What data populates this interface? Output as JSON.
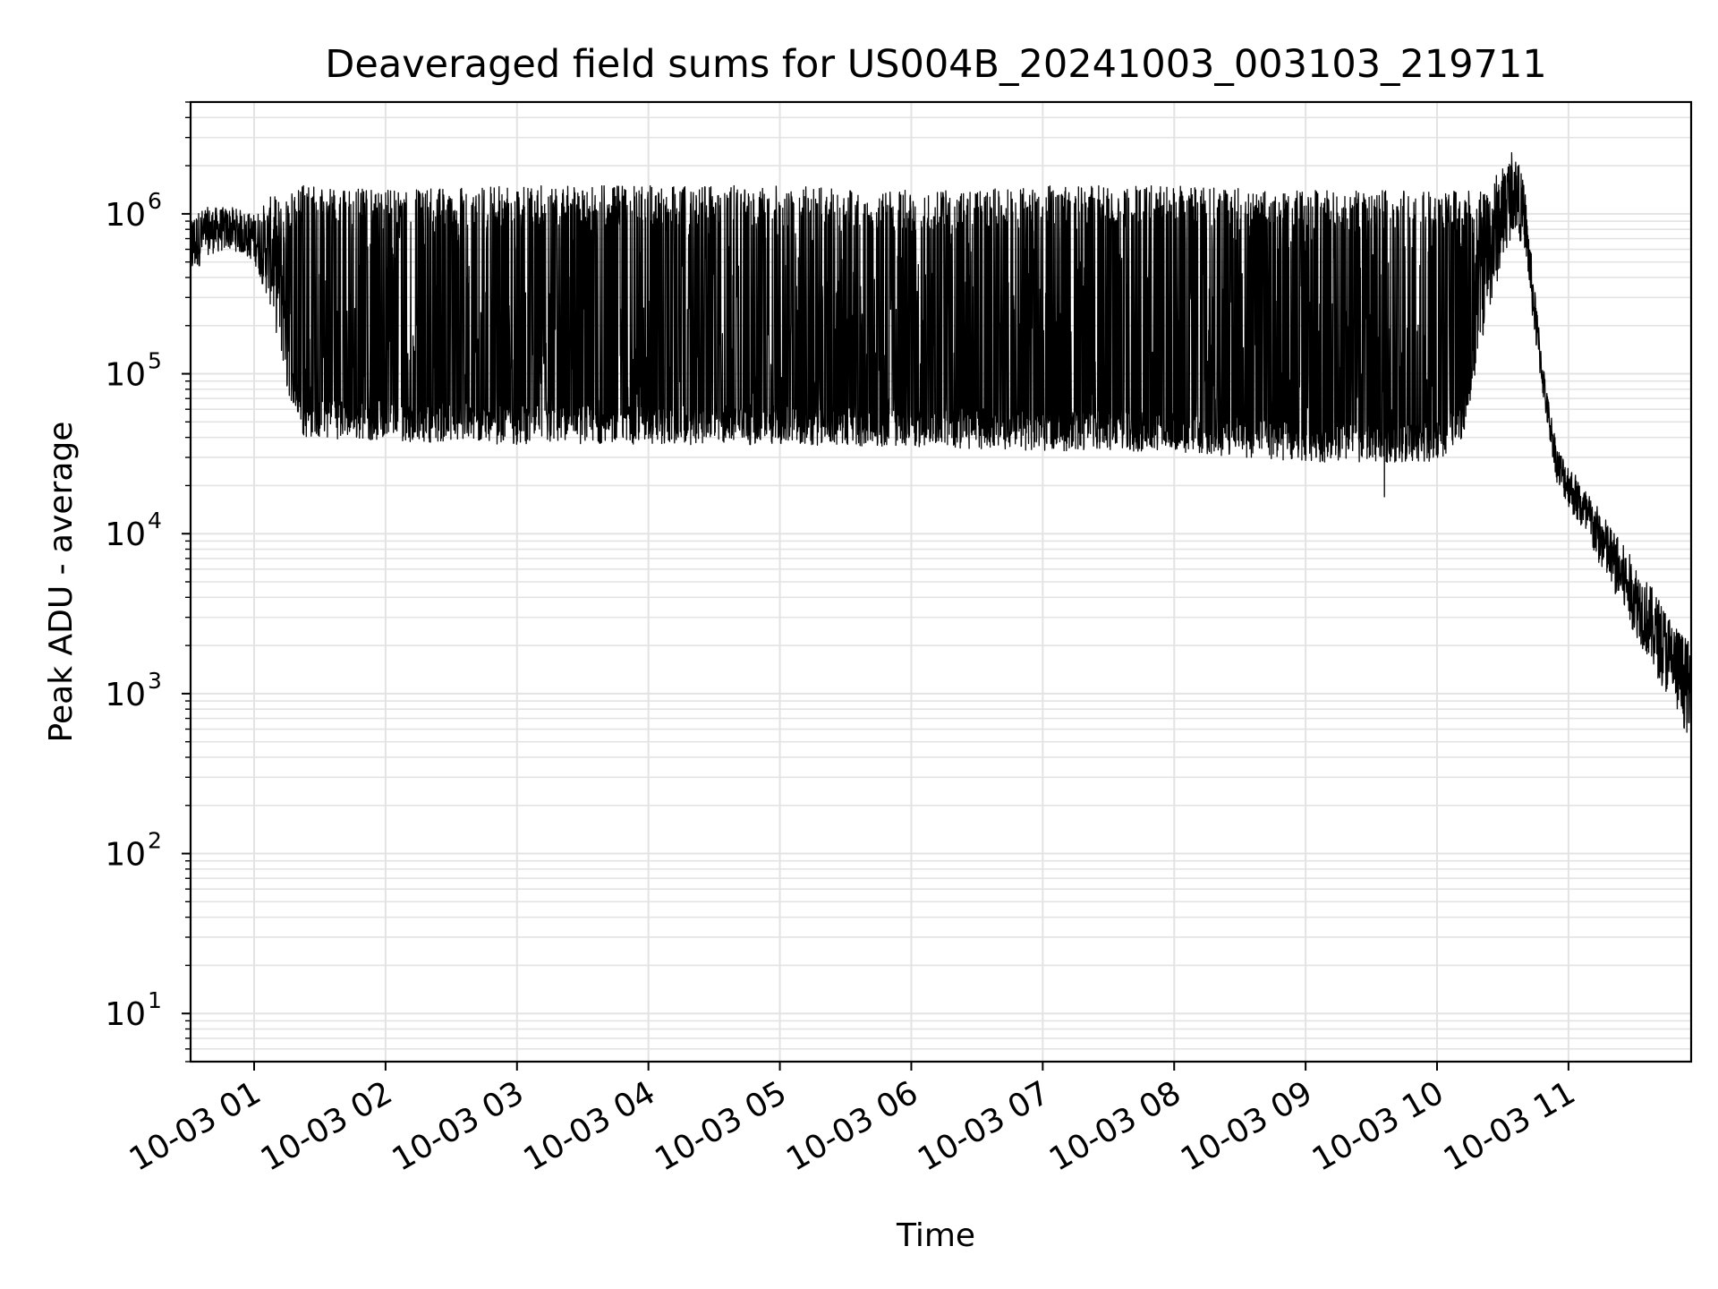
{
  "chart_data": {
    "type": "line",
    "title": "Deaveraged field sums for US004B_20241003_003103_219711",
    "xlabel": "Time",
    "ylabel": "Peak ADU - average",
    "yscale": "log",
    "ylim": [
      5,
      5000000
    ],
    "xlim": [
      "2024-10-03 00:31",
      "2024-10-03 11:56"
    ],
    "grid": true,
    "grid_color": "#e3e3e3",
    "line_color": "#000000",
    "x_ticks": [
      {
        "value": "2024-10-03 01:00",
        "label": "10-03 01"
      },
      {
        "value": "2024-10-03 02:00",
        "label": "10-03 02"
      },
      {
        "value": "2024-10-03 03:00",
        "label": "10-03 03"
      },
      {
        "value": "2024-10-03 04:00",
        "label": "10-03 04"
      },
      {
        "value": "2024-10-03 05:00",
        "label": "10-03 05"
      },
      {
        "value": "2024-10-03 06:00",
        "label": "10-03 06"
      },
      {
        "value": "2024-10-03 07:00",
        "label": "10-03 07"
      },
      {
        "value": "2024-10-03 08:00",
        "label": "10-03 08"
      },
      {
        "value": "2024-10-03 09:00",
        "label": "10-03 09"
      },
      {
        "value": "2024-10-03 10:00",
        "label": "10-03 10"
      },
      {
        "value": "2024-10-03 11:00",
        "label": "10-03 11"
      }
    ],
    "y_ticks": [
      {
        "value": 10,
        "base": "10",
        "exp": "1"
      },
      {
        "value": 100,
        "base": "10",
        "exp": "2"
      },
      {
        "value": 1000,
        "base": "10",
        "exp": "3"
      },
      {
        "value": 10000,
        "base": "10",
        "exp": "4"
      },
      {
        "value": 100000,
        "base": "10",
        "exp": "5"
      },
      {
        "value": 1000000,
        "base": "10",
        "exp": "6"
      }
    ],
    "series": [
      {
        "style": "noisy-envelope",
        "envelope": [
          {
            "t": "2024-10-03 00:31",
            "low": 380000,
            "high": 1000000
          },
          {
            "t": "2024-10-03 00:38",
            "low": 550000,
            "high": 1100000
          },
          {
            "t": "2024-10-03 00:50",
            "low": 600000,
            "high": 1100000
          },
          {
            "t": "2024-10-03 01:00",
            "low": 500000,
            "high": 1000000
          },
          {
            "t": "2024-10-03 01:08",
            "low": 250000,
            "high": 1300000
          },
          {
            "t": "2024-10-03 01:15",
            "low": 80000,
            "high": 1300000
          },
          {
            "t": "2024-10-03 01:22",
            "low": 40000,
            "high": 1500000
          },
          {
            "t": "2024-10-03 02:00",
            "low": 38000,
            "high": 1400000
          },
          {
            "t": "2024-10-03 03:00",
            "low": 36000,
            "high": 1500000
          },
          {
            "t": "2024-10-03 04:00",
            "low": 36000,
            "high": 1500000
          },
          {
            "t": "2024-10-03 05:00",
            "low": 36000,
            "high": 1500000
          },
          {
            "t": "2024-10-03 06:00",
            "low": 35000,
            "high": 1400000
          },
          {
            "t": "2024-10-03 07:00",
            "low": 33000,
            "high": 1500000
          },
          {
            "t": "2024-10-03 08:00",
            "low": 32000,
            "high": 1500000
          },
          {
            "t": "2024-10-03 09:00",
            "low": 28000,
            "high": 1400000
          },
          {
            "t": "2024-10-03 10:00",
            "low": 28000,
            "high": 1400000
          },
          {
            "t": "2024-10-03 10:12",
            "low": 40000,
            "high": 1400000
          },
          {
            "t": "2024-10-03 10:20",
            "low": 150000,
            "high": 1400000
          },
          {
            "t": "2024-10-03 10:30",
            "low": 500000,
            "high": 2000000
          },
          {
            "t": "2024-10-03 10:35",
            "low": 800000,
            "high": 2700000
          },
          {
            "t": "2024-10-03 10:40",
            "low": 600000,
            "high": 1500000
          },
          {
            "t": "2024-10-03 10:45",
            "low": 150000,
            "high": 300000
          },
          {
            "t": "2024-10-03 10:50",
            "low": 50000,
            "high": 80000
          },
          {
            "t": "2024-10-03 10:55",
            "low": 20000,
            "high": 35000
          },
          {
            "t": "2024-10-03 11:56",
            "low": 500,
            "high": 2000
          }
        ],
        "drops": [
          {
            "t": "2024-10-03 09:36",
            "value": 17000
          }
        ]
      }
    ]
  }
}
